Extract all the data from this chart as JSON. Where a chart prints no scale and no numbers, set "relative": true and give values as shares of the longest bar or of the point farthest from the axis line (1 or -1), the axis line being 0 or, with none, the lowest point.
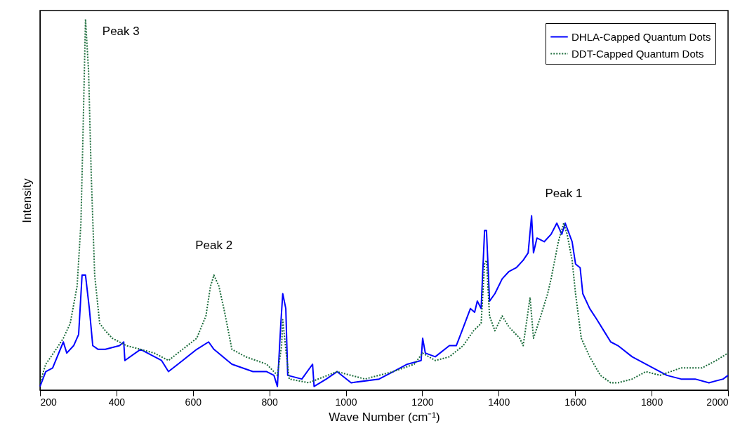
{
  "chart_data": {
    "type": "line",
    "relative": true,
    "xlabel": "Wave Number (cm⁻¹)",
    "ylabel": "Intensity",
    "x": [
      200,
      215,
      233,
      261,
      270,
      288,
      301,
      310,
      319,
      329,
      338,
      352,
      371,
      408,
      419,
      422,
      463,
      518,
      536,
      573,
      610,
      641,
      655,
      702,
      757,
      793,
      812,
      821,
      830,
      835,
      843,
      848,
      885,
      913,
      917,
      949,
      977,
      1014,
      1087,
      1124,
      1161,
      1197,
      1201,
      1208,
      1234,
      1271,
      1289,
      1304,
      1326,
      1337,
      1344,
      1354,
      1363,
      1368,
      1376,
      1390,
      1409,
      1427,
      1446,
      1464,
      1477,
      1486,
      1491,
      1500,
      1519,
      1537,
      1552,
      1565,
      1574,
      1592,
      1601,
      1613,
      1620,
      1638,
      1657,
      1675,
      1693,
      1712,
      1749,
      1785,
      1822,
      1840,
      1877,
      1914,
      1950,
      1987,
      2000
    ],
    "xlim": [
      200,
      2000
    ],
    "xticks": [
      200,
      400,
      600,
      800,
      1000,
      1200,
      1400,
      1600,
      1800,
      2000
    ],
    "series": [
      {
        "name": "DHLA-Capped Quantum Dots",
        "color": "#0000ff",
        "line_style": "solid",
        "values": [
          0.01,
          0.05,
          0.06,
          0.13,
          0.1,
          0.12,
          0.15,
          0.31,
          0.31,
          0.22,
          0.12,
          0.11,
          0.11,
          0.12,
          0.13,
          0.08,
          0.11,
          0.08,
          0.05,
          0.08,
          0.11,
          0.13,
          0.11,
          0.07,
          0.05,
          0.05,
          0.04,
          0.01,
          0.18,
          0.26,
          0.22,
          0.04,
          0.03,
          0.07,
          0.01,
          0.03,
          0.05,
          0.02,
          0.03,
          0.05,
          0.07,
          0.08,
          0.14,
          0.1,
          0.09,
          0.12,
          0.12,
          0.16,
          0.22,
          0.21,
          0.24,
          0.22,
          0.43,
          0.43,
          0.24,
          0.26,
          0.3,
          0.32,
          0.33,
          0.35,
          0.37,
          0.47,
          0.37,
          0.41,
          0.4,
          0.42,
          0.45,
          0.42,
          0.45,
          0.4,
          0.34,
          0.33,
          0.26,
          0.22,
          0.19,
          0.16,
          0.13,
          0.12,
          0.09,
          0.07,
          0.05,
          0.04,
          0.03,
          0.03,
          0.02,
          0.03,
          0.04
        ]
      },
      {
        "name": "DDT-Capped Quantum Dots",
        "color": "#1a6b3a",
        "line_style": "dotted",
        "x": [
          200,
          215,
          242,
          261,
          279,
          297,
          307,
          312,
          319,
          327,
          334,
          343,
          356,
          371,
          389,
          426,
          463,
          499,
          536,
          573,
          610,
          634,
          646,
          655,
          668,
          683,
          702,
          738,
          793,
          821,
          832,
          835,
          844,
          852,
          903,
          977,
          1050,
          1124,
          1179,
          1201,
          1234,
          1271,
          1307,
          1334,
          1354,
          1363,
          1368,
          1376,
          1390,
          1409,
          1427,
          1455,
          1464,
          1482,
          1491,
          1510,
          1528,
          1537,
          1556,
          1570,
          1579,
          1592,
          1601,
          1616,
          1638,
          1666,
          1693,
          1712,
          1749,
          1785,
          1822,
          1877,
          1932,
          1969,
          2000
        ],
        "values": [
          0.02,
          0.07,
          0.11,
          0.14,
          0.18,
          0.28,
          0.45,
          0.67,
          1.0,
          0.86,
          0.58,
          0.31,
          0.18,
          0.16,
          0.14,
          0.12,
          0.11,
          0.1,
          0.08,
          0.11,
          0.14,
          0.2,
          0.28,
          0.31,
          0.28,
          0.21,
          0.11,
          0.09,
          0.07,
          0.04,
          0.12,
          0.19,
          0.1,
          0.03,
          0.02,
          0.05,
          0.03,
          0.05,
          0.07,
          0.1,
          0.08,
          0.09,
          0.12,
          0.16,
          0.18,
          0.34,
          0.35,
          0.2,
          0.16,
          0.2,
          0.17,
          0.14,
          0.12,
          0.25,
          0.14,
          0.2,
          0.26,
          0.3,
          0.4,
          0.45,
          0.42,
          0.35,
          0.26,
          0.14,
          0.09,
          0.04,
          0.02,
          0.02,
          0.03,
          0.05,
          0.04,
          0.06,
          0.06,
          0.08,
          0.1
        ]
      }
    ],
    "legend": "top right",
    "annotations": [
      {
        "text": "Peak 3",
        "x": 319,
        "y": 1.0
      },
      {
        "text": "Peak 2",
        "x": 655,
        "y": 0.31
      },
      {
        "text": "Peak 1",
        "x": 1570,
        "y": 0.45
      }
    ]
  }
}
